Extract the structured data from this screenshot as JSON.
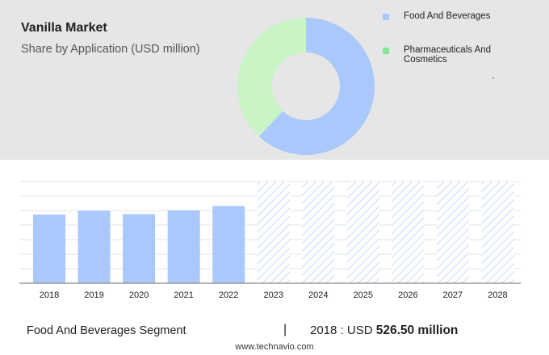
{
  "header": {
    "title": "Vanilla Market",
    "subtitle": "Share by Application (USD million)"
  },
  "legend": {
    "items": [
      {
        "label": "Food And Beverages",
        "color": "#a9c8fb"
      },
      {
        "label": "Pharmaceuticals And Cosmetics",
        "color": "#7fe89a"
      }
    ]
  },
  "footer": {
    "segment": "Food And Beverages Segment",
    "divider": "|",
    "year_label": "2018 : USD ",
    "value_label": "526.50 million",
    "source": "www.technavio.com"
  },
  "chart_data": [
    {
      "type": "pie",
      "donut": true,
      "series": [
        {
          "name": "Food And Beverages",
          "value": 62,
          "color": "#a9c8fb"
        },
        {
          "name": "Pharmaceuticals And Cosmetics",
          "value": 38,
          "color": "#c9f5c6"
        }
      ]
    },
    {
      "type": "bar",
      "categories": [
        "2018",
        "2019",
        "2020",
        "2021",
        "2022",
        "2023",
        "2024",
        "2025",
        "2026",
        "2027",
        "2028"
      ],
      "values": [
        526.5,
        556,
        530,
        559,
        592,
        null,
        null,
        null,
        null,
        null,
        null
      ],
      "forecast_categories": [
        "2023",
        "2024",
        "2025",
        "2026",
        "2027",
        "2028"
      ],
      "ylim": [
        0,
        780
      ],
      "grid": true,
      "bar_color": "#a9c8fb",
      "forecast_pattern_color": "#b8cdf5"
    }
  ]
}
